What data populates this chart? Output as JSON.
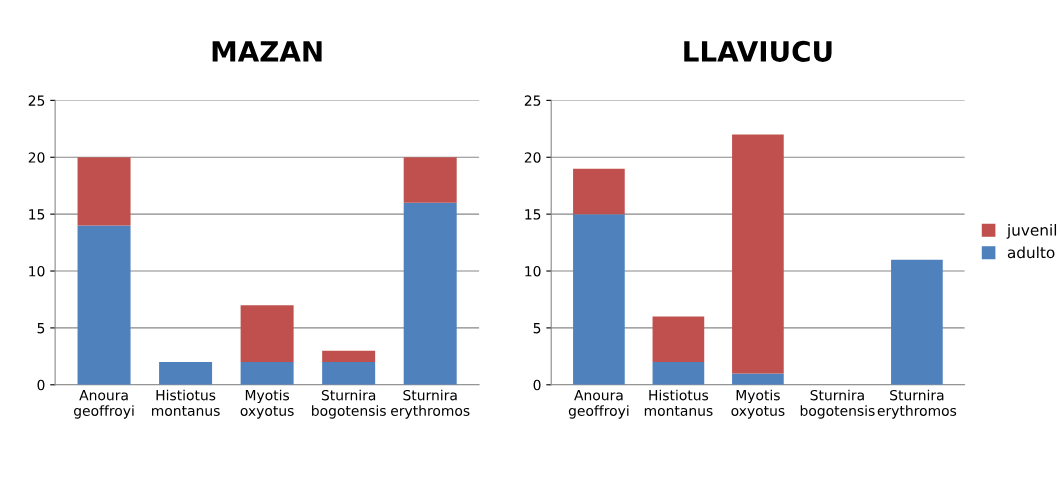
{
  "chart_data": [
    {
      "type": "bar",
      "title": "MAZAN",
      "stacked": true,
      "categories": [
        "Anoura\ngeoffroyi",
        "Histiotus\nmontanus",
        "Myotis\noxyotus",
        "Sturnira\nbogotensis",
        "Sturnira\nerythromos"
      ],
      "ylim": [
        0,
        25
      ],
      "yticks": [
        0,
        5,
        10,
        15,
        20,
        25
      ],
      "grid": "y",
      "legend": false,
      "series": [
        {
          "color": "#4f81bd",
          "values": [
            14,
            2,
            2,
            2,
            16
          ]
        },
        {
          "color": "#c0504d",
          "values": [
            6,
            0,
            5,
            1,
            4
          ]
        }
      ]
    },
    {
      "type": "bar",
      "title": "LLAVIUCU",
      "stacked": true,
      "categories": [
        "Anoura\ngeoffroyi",
        "Histiotus\nmontanus",
        "Myotis\noxyotus",
        "Sturnira\nbogotensis",
        "Sturnira\nerythromos"
      ],
      "ylim": [
        0,
        25
      ],
      "yticks": [
        0,
        5,
        10,
        15,
        20,
        25
      ],
      "grid": "y",
      "legend": "right",
      "series": [
        {
          "name": "adulto",
          "color": "#4f81bd",
          "values": [
            15,
            2,
            1,
            0,
            11
          ]
        },
        {
          "name": "juvenil",
          "color": "#c0504d",
          "values": [
            4,
            4,
            21,
            0,
            0
          ]
        }
      ]
    }
  ]
}
